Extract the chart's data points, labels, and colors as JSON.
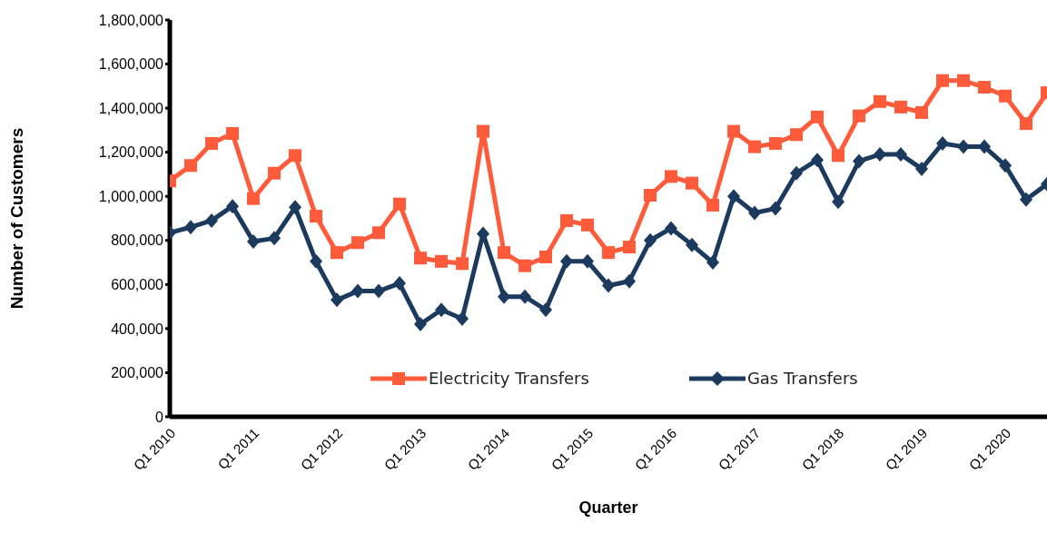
{
  "chart_data": {
    "type": "line",
    "xlabel": "Quarter",
    "ylabel": "Number of Customers",
    "categories": [
      "Q1 2010",
      null,
      null,
      null,
      "Q1 2011",
      null,
      null,
      null,
      "Q1 2012",
      null,
      null,
      null,
      "Q1 2013",
      null,
      null,
      null,
      "Q1 2014",
      null,
      null,
      null,
      "Q1 2015",
      null,
      null,
      null,
      "Q1 2016",
      null,
      null,
      null,
      "Q1 2017",
      null,
      null,
      null,
      "Q1 2018",
      null,
      null,
      null,
      "Q1 2019",
      null,
      null,
      null,
      "Q1 2020",
      null,
      null
    ],
    "series": [
      {
        "name": "Electricity Transfers",
        "color": "#ff5b3a",
        "marker": "square",
        "values": [
          1070000,
          1140000,
          1240000,
          1285000,
          990000,
          1105000,
          1185000,
          910000,
          745000,
          790000,
          835000,
          965000,
          720000,
          705000,
          695000,
          1295000,
          745000,
          685000,
          725000,
          890000,
          870000,
          745000,
          770000,
          1005000,
          1090000,
          1060000,
          960000,
          1295000,
          1225000,
          1240000,
          1280000,
          1360000,
          1185000,
          1365000,
          1430000,
          1405000,
          1380000,
          1525000,
          1525000,
          1495000,
          1455000,
          1330000,
          1470000
        ]
      },
      {
        "name": "Gas Transfers",
        "color": "#1b3a5e",
        "marker": "diamond",
        "values": [
          835000,
          860000,
          890000,
          955000,
          795000,
          810000,
          950000,
          705000,
          530000,
          570000,
          570000,
          605000,
          420000,
          485000,
          445000,
          830000,
          545000,
          545000,
          485000,
          705000,
          705000,
          595000,
          615000,
          800000,
          855000,
          780000,
          700000,
          1000000,
          925000,
          945000,
          1105000,
          1165000,
          975000,
          1160000,
          1190000,
          1190000,
          1125000,
          1240000,
          1225000,
          1225000,
          1140000,
          985000,
          1055000
        ]
      }
    ],
    "ylim": [
      0,
      1800000
    ],
    "yticks": [
      {
        "value": 0,
        "label": "0"
      },
      {
        "value": 200000,
        "label": "200,000"
      },
      {
        "value": 400000,
        "label": "400,000"
      },
      {
        "value": 600000,
        "label": "600,000"
      },
      {
        "value": 800000,
        "label": "800,000"
      },
      {
        "value": 1000000,
        "label": "1,000,000"
      },
      {
        "value": 1200000,
        "label": "1,200,000"
      },
      {
        "value": 1400000,
        "label": "1,400,000"
      },
      {
        "value": 1600000,
        "label": "1,600,000"
      },
      {
        "value": 1800000,
        "label": "1,800,000"
      }
    ],
    "grid": false,
    "legend": "bottom",
    "line_style": "solid"
  }
}
